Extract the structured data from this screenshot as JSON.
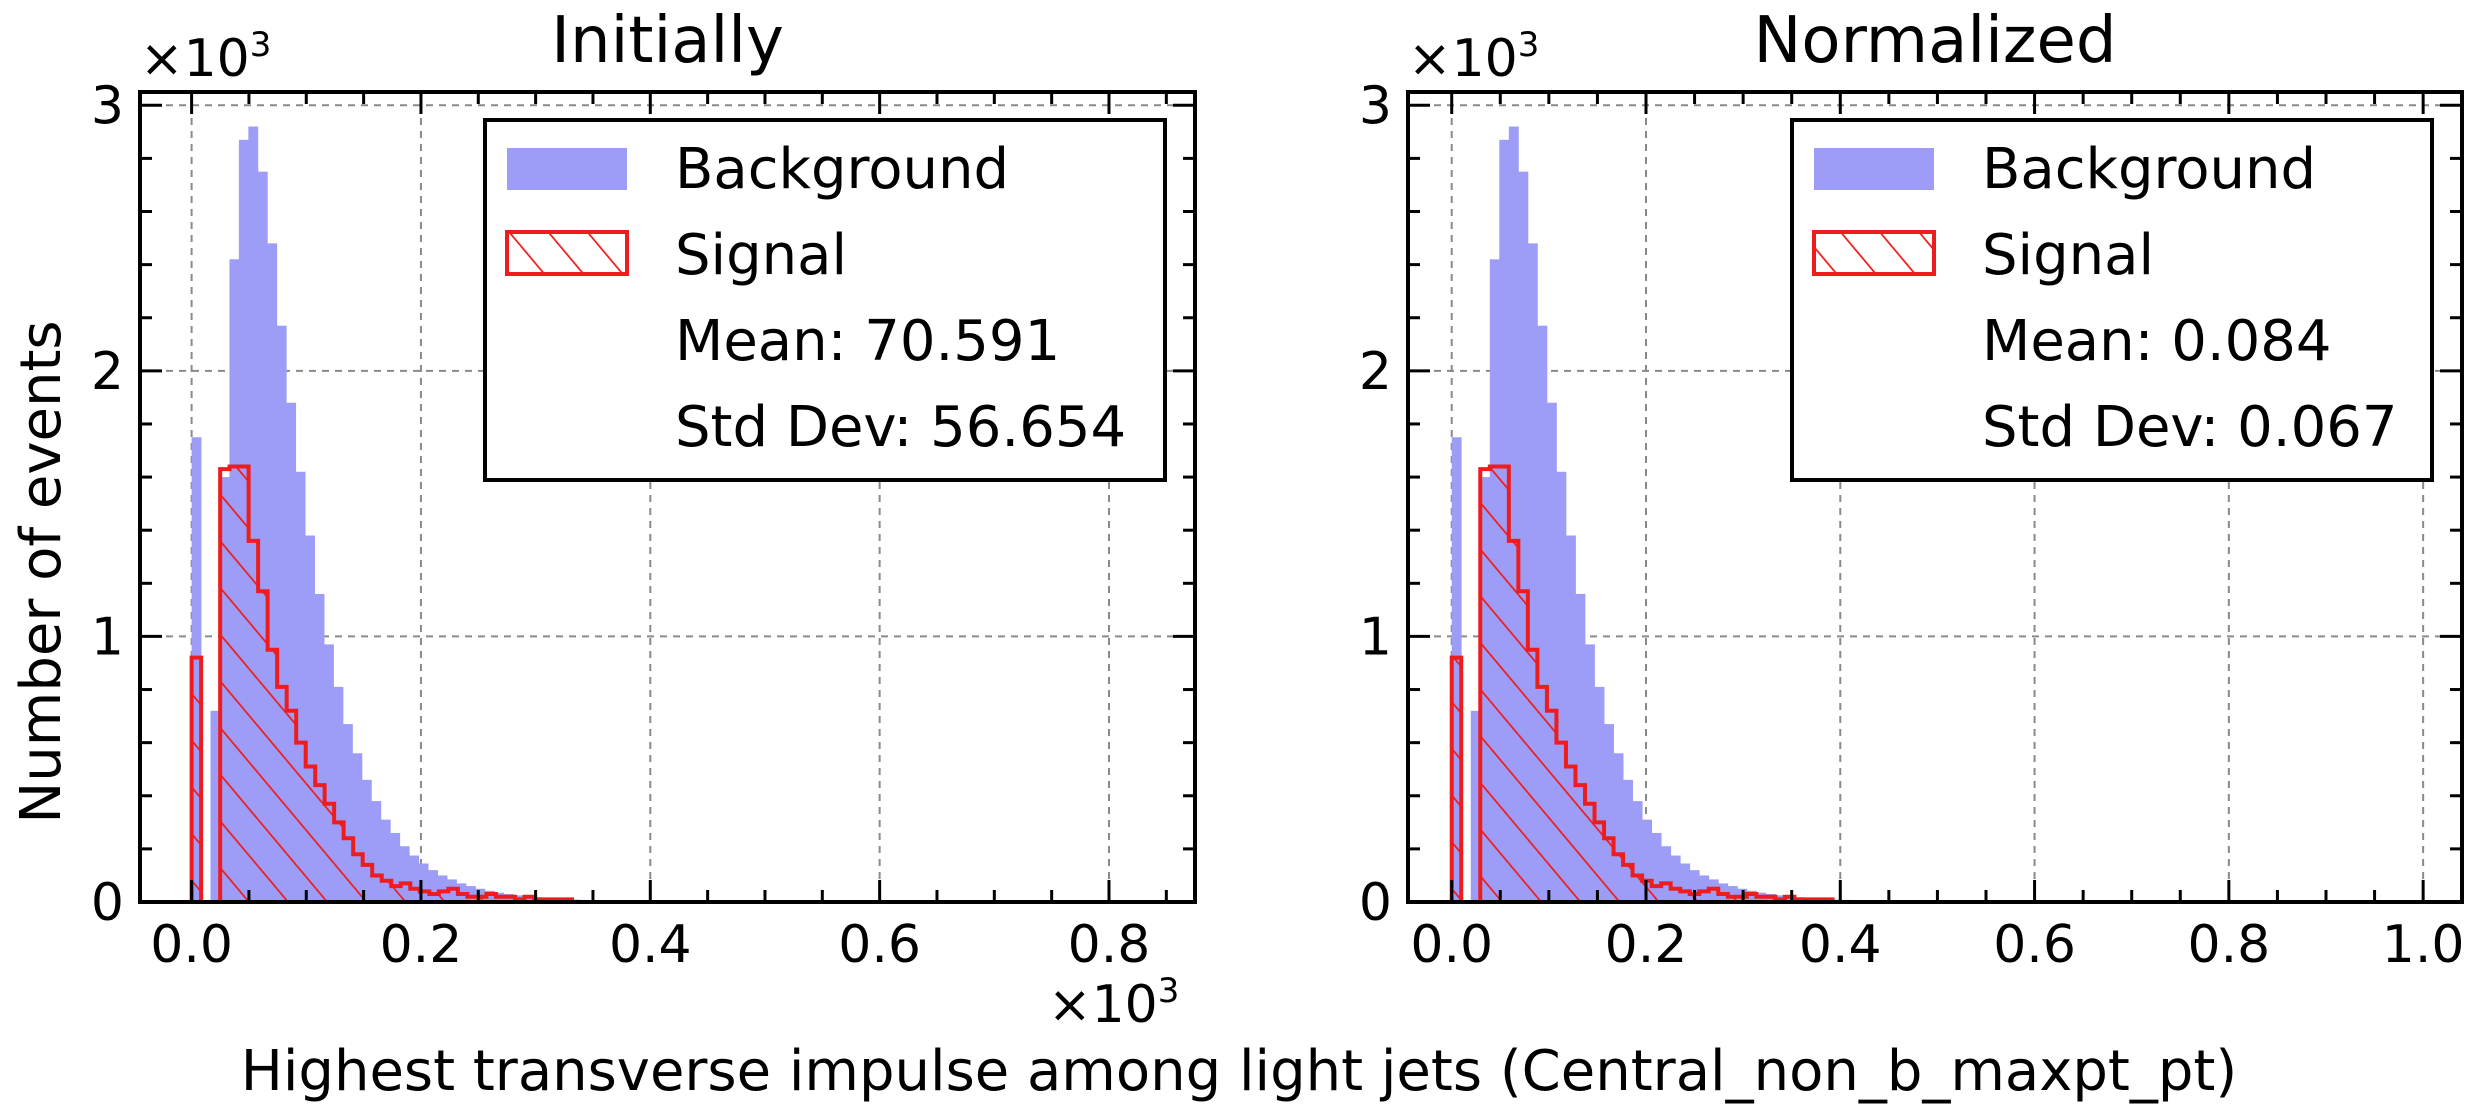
{
  "figure": {
    "ylabel": "Number of events",
    "xlabel": "Highest transverse impulse among light jets (Central_non_b_maxpt_pt)",
    "xlabel_multiplier": "×10",
    "xlabel_multiplier_exp": "3"
  },
  "colors": {
    "background_fill": "#9d9df8",
    "signal_edge": "#ee1c1c",
    "grid": "#8a8a8a"
  },
  "chart_data": [
    {
      "type": "bar",
      "title": "Initially",
      "y_multiplier": "×10",
      "y_multiplier_exp": "3",
      "xlim": [
        -0.045,
        0.875
      ],
      "ylim": [
        0,
        3.05
      ],
      "xticks": [
        0.0,
        0.2,
        0.4,
        0.6,
        0.8
      ],
      "xtick_labels": [
        "0.0",
        "0.2",
        "0.4",
        "0.6",
        "0.8"
      ],
      "yticks": [
        0,
        1,
        2,
        3
      ],
      "ytick_labels": [
        "0",
        "1",
        "2",
        "3"
      ],
      "grid": true,
      "legend_position": "top-right",
      "legend": {
        "background_label": "Background",
        "signal_label": "Signal",
        "stats": [
          "Mean: 70.591",
          "Std Dev: 56.654"
        ]
      },
      "bin_width": 0.00825,
      "background": {
        "name": "Background",
        "x_start": 0.0,
        "values": [
          1.75,
          0.0,
          0.72,
          1.6,
          2.42,
          2.87,
          2.92,
          2.75,
          2.48,
          2.17,
          1.88,
          1.62,
          1.38,
          1.16,
          0.97,
          0.81,
          0.67,
          0.56,
          0.46,
          0.38,
          0.31,
          0.26,
          0.21,
          0.175,
          0.145,
          0.12,
          0.1,
          0.085,
          0.07,
          0.06,
          0.05,
          0.042,
          0.035,
          0.03,
          0.025,
          0.021,
          0.018,
          0.015,
          0.013,
          0.011,
          0.009,
          0.008,
          0.007,
          0.006,
          0.005,
          0.004,
          0.004,
          0.003,
          0.003,
          0.003,
          0.002,
          0.002,
          0.002,
          0.002,
          0.002,
          0.001,
          0.001,
          0.001,
          0.001,
          0.001,
          0.001,
          0.001,
          0.001,
          0.001,
          0.001,
          0.001,
          0.001,
          0.001,
          0.001,
          0.001,
          0.001,
          0.001,
          0.001,
          0.001,
          0.001,
          0.001,
          0.001,
          0.001,
          0.001,
          0.001,
          0.001,
          0.001,
          0.001,
          0.001,
          0.001,
          0.001,
          0.001,
          0.001,
          0.001,
          0.001,
          0.001,
          0.001,
          0.001,
          0.001,
          0.001,
          0.001,
          0.001,
          0.001,
          0.001,
          0.001
        ]
      },
      "signal": {
        "name": "Signal",
        "bin_edges": [
          0.0,
          0.0083,
          0.0249,
          0.0331,
          0.0497,
          0.058,
          0.0663,
          0.0746,
          0.0829,
          0.0912,
          0.0995,
          0.1078,
          0.116,
          0.1243,
          0.1326,
          0.1409,
          0.1492,
          0.1575,
          0.1658,
          0.1741,
          0.1824,
          0.1907,
          0.199,
          0.2073,
          0.2156,
          0.2239,
          0.2322,
          0.2405,
          0.2488,
          0.2571,
          0.2654,
          0.2737,
          0.282,
          0.2903,
          0.2986,
          0.3069,
          0.3152,
          0.3235,
          0.3318
        ],
        "values": [
          0.92,
          0.0,
          1.63,
          1.64,
          1.36,
          1.17,
          0.95,
          0.81,
          0.72,
          0.6,
          0.51,
          0.44,
          0.37,
          0.3,
          0.24,
          0.18,
          0.14,
          0.1,
          0.08,
          0.06,
          0.07,
          0.05,
          0.04,
          0.03,
          0.04,
          0.05,
          0.03,
          0.02,
          0.02,
          0.03,
          0.02,
          0.02,
          0.01,
          0.02,
          0.01,
          0.01,
          0.01,
          0.01
        ]
      }
    },
    {
      "type": "bar",
      "title": "Normalized",
      "y_multiplier": "×10",
      "y_multiplier_exp": "3",
      "xlim": [
        -0.045,
        1.04
      ],
      "ylim": [
        0,
        3.05
      ],
      "xticks": [
        0.0,
        0.2,
        0.4,
        0.6,
        0.8,
        1.0
      ],
      "xtick_labels": [
        "0.0",
        "0.2",
        "0.4",
        "0.6",
        "0.8",
        "1.0"
      ],
      "yticks": [
        0,
        1,
        2,
        3
      ],
      "ytick_labels": [
        "0",
        "1",
        "2",
        "3"
      ],
      "grid": true,
      "legend_position": "top-right",
      "legend": {
        "background_label": "Background",
        "signal_label": "Signal",
        "stats": [
          "Mean: 0.084",
          "Std Dev: 0.067"
        ]
      },
      "bin_width": 0.0098,
      "background": {
        "name": "Background",
        "x_start": 0.0,
        "values": [
          1.75,
          0.0,
          0.72,
          1.6,
          2.42,
          2.87,
          2.92,
          2.75,
          2.48,
          2.17,
          1.88,
          1.62,
          1.38,
          1.16,
          0.97,
          0.81,
          0.67,
          0.56,
          0.46,
          0.38,
          0.31,
          0.26,
          0.21,
          0.175,
          0.145,
          0.12,
          0.1,
          0.085,
          0.07,
          0.06,
          0.05,
          0.042,
          0.035,
          0.03,
          0.025,
          0.021,
          0.018,
          0.015,
          0.013,
          0.011,
          0.009,
          0.008,
          0.007,
          0.006,
          0.005,
          0.004,
          0.004,
          0.003,
          0.003,
          0.003,
          0.002,
          0.002,
          0.002,
          0.002,
          0.002,
          0.001,
          0.001,
          0.001,
          0.001,
          0.001,
          0.001,
          0.001,
          0.001,
          0.001,
          0.001,
          0.001,
          0.001,
          0.001,
          0.001,
          0.001,
          0.001,
          0.001,
          0.001,
          0.001,
          0.001,
          0.001,
          0.001,
          0.001,
          0.001,
          0.001,
          0.001,
          0.001,
          0.001,
          0.001,
          0.001,
          0.001,
          0.001,
          0.001,
          0.001,
          0.001,
          0.001,
          0.001,
          0.001,
          0.001,
          0.001,
          0.001,
          0.001,
          0.001,
          0.001,
          0.001,
          0.001
        ]
      },
      "signal": {
        "name": "Signal",
        "bin_edges": [
          0.0,
          0.0098,
          0.0294,
          0.0392,
          0.0588,
          0.0686,
          0.0784,
          0.0882,
          0.098,
          0.1078,
          0.1176,
          0.1274,
          0.1372,
          0.147,
          0.1568,
          0.1666,
          0.1764,
          0.1862,
          0.196,
          0.2058,
          0.2156,
          0.2254,
          0.2352,
          0.245,
          0.2548,
          0.2646,
          0.2744,
          0.2842,
          0.294,
          0.3038,
          0.3136,
          0.3234,
          0.3332,
          0.343,
          0.3528,
          0.3626,
          0.3724,
          0.3822,
          0.392
        ],
        "values": [
          0.92,
          0.0,
          1.63,
          1.64,
          1.36,
          1.17,
          0.95,
          0.81,
          0.72,
          0.6,
          0.51,
          0.44,
          0.37,
          0.3,
          0.24,
          0.18,
          0.14,
          0.1,
          0.08,
          0.06,
          0.07,
          0.05,
          0.04,
          0.03,
          0.04,
          0.05,
          0.03,
          0.02,
          0.02,
          0.03,
          0.02,
          0.02,
          0.01,
          0.02,
          0.01,
          0.01,
          0.01,
          0.01
        ]
      }
    }
  ]
}
